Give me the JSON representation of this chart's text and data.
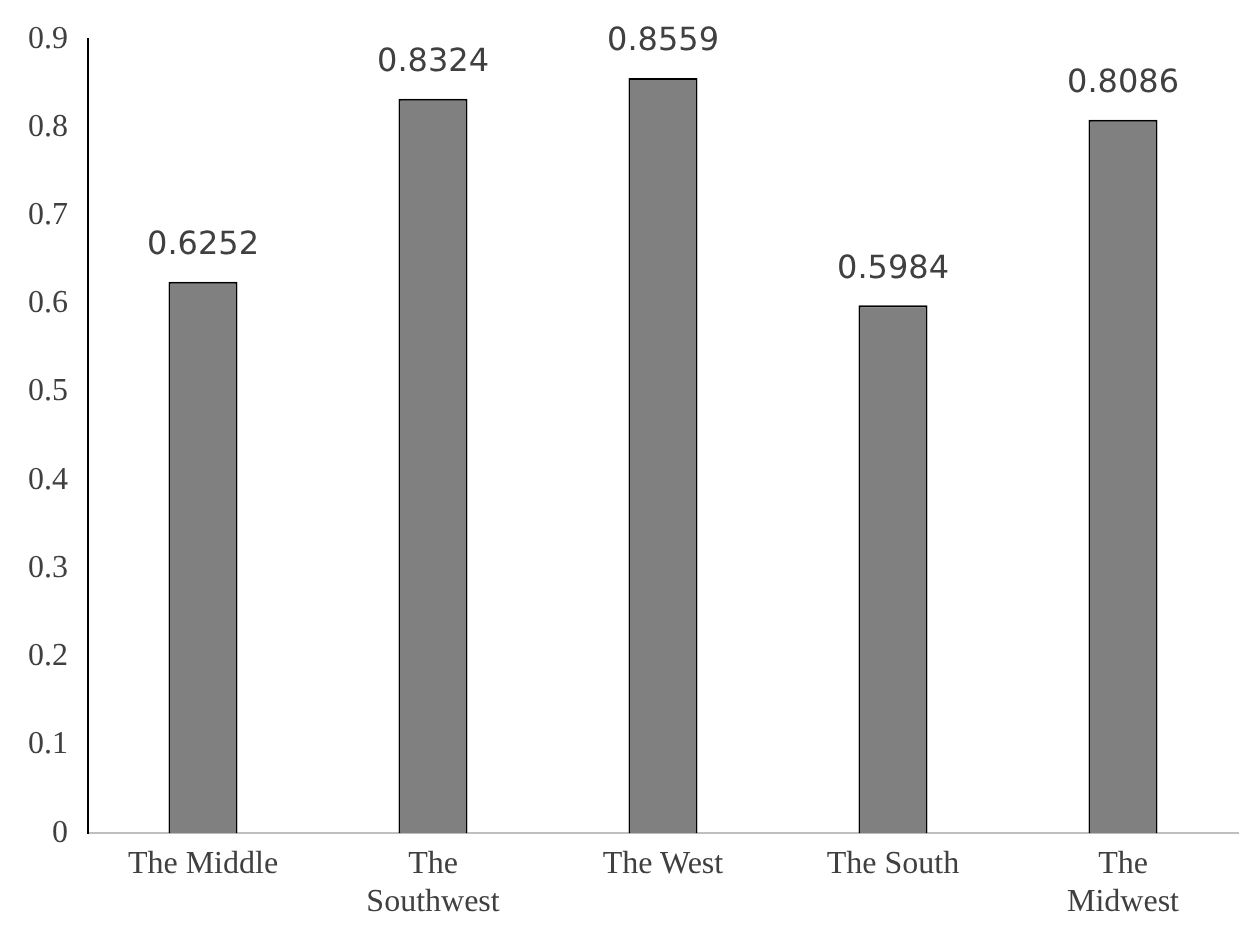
{
  "chart_data": {
    "type": "bar",
    "categories": [
      "The Middle",
      "The Southwest",
      "The West",
      "The South",
      "The Midwest"
    ],
    "values": [
      0.6252,
      0.8324,
      0.8559,
      0.5984,
      0.8086
    ],
    "color": "#808080",
    "ylim": [
      0,
      0.9
    ],
    "yticks": [
      0,
      0.1,
      0.2,
      0.3,
      0.4,
      0.5,
      0.6,
      0.7,
      0.8,
      0.9
    ],
    "grid": false,
    "legend": false,
    "data_labels": true
  }
}
